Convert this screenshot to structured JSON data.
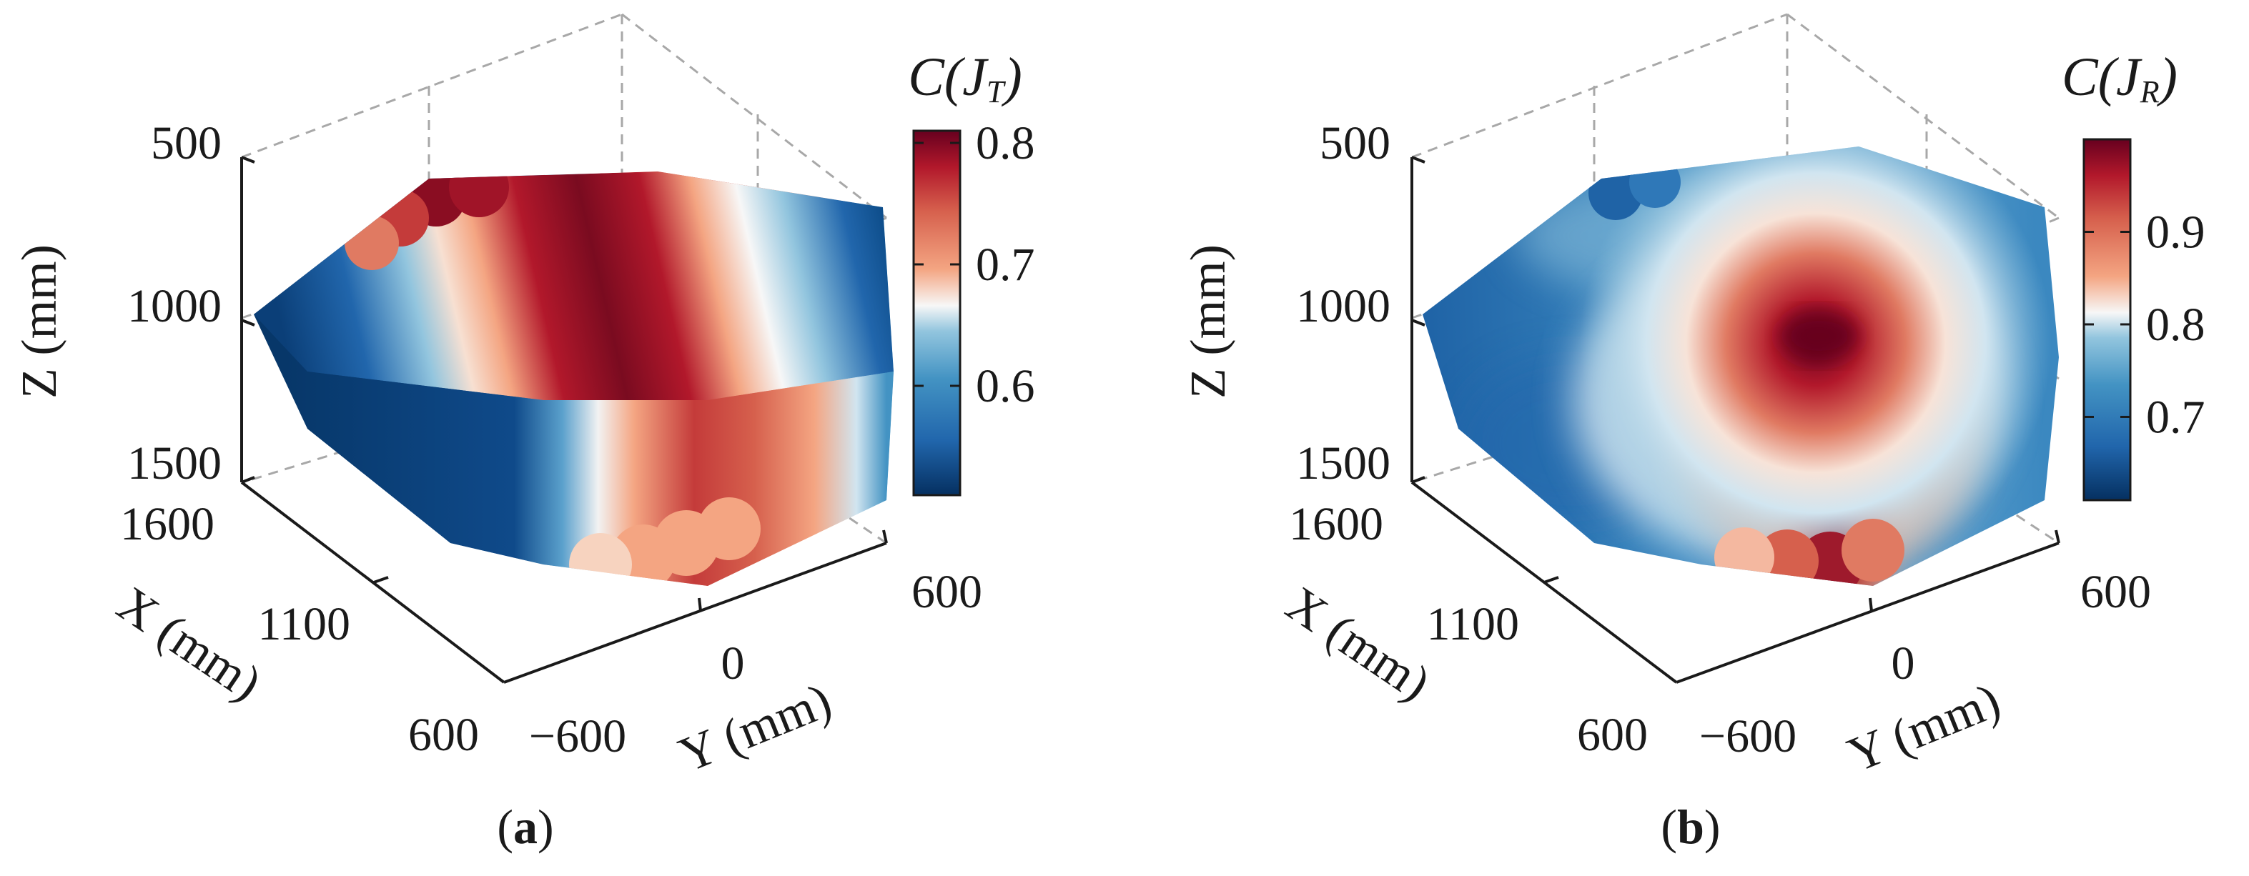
{
  "chart_data": [
    {
      "type": "scatter",
      "panel_label": "a",
      "projection": "3d",
      "title": "",
      "xlabel": "X (mm)",
      "ylabel": "Y (mm)",
      "zlabel": "Z (mm)",
      "x_ticks": [
        "600",
        "1100",
        "1600"
      ],
      "y_ticks": [
        "−600",
        "0",
        "600"
      ],
      "z_ticks": [
        "500",
        "1000",
        "1500"
      ],
      "xlim": [
        600,
        1600
      ],
      "ylim": [
        -600,
        600
      ],
      "zlim": [
        500,
        1500
      ],
      "z_reversed": true,
      "colorbar": {
        "label_main": "C(J",
        "label_sub": "T",
        "label_close": ")",
        "ticks": [
          0.6,
          0.7,
          0.8
        ],
        "tick_labels": [
          "0.6",
          "0.7",
          "0.8"
        ],
        "range": [
          0.51,
          0.81
        ],
        "colormap": "blue-white-red"
      },
      "value_range": [
        0.51,
        0.81
      ],
      "pattern": "bands along Y: low (~0.52) at Y=-600, high (~0.80) near Y=-150, low again at Y=+600"
    },
    {
      "type": "scatter",
      "panel_label": "b",
      "projection": "3d",
      "title": "",
      "xlabel": "X (mm)",
      "ylabel": "Y (mm)",
      "zlabel": "Z (mm)",
      "x_ticks": [
        "600",
        "1100",
        "1600"
      ],
      "y_ticks": [
        "−600",
        "0",
        "600"
      ],
      "z_ticks": [
        "500",
        "1000",
        "1500"
      ],
      "xlim": [
        600,
        1600
      ],
      "ylim": [
        -600,
        600
      ],
      "zlim": [
        500,
        1500
      ],
      "z_reversed": true,
      "colorbar": {
        "label_main": "C(J",
        "label_sub": "R",
        "label_close": ")",
        "ticks": [
          0.7,
          0.8,
          0.9
        ],
        "tick_labels": [
          "0.7",
          "0.8",
          "0.9"
        ],
        "range": [
          0.61,
          1.0
        ],
        "colormap": "blue-white-red"
      },
      "value_range": [
        0.62,
        0.99
      ],
      "pattern": "hot spot (~0.99) near X=600..1100, Y=-100, Z=1000; decreasing outward to ~0.65"
    }
  ],
  "colors": {
    "low": "#053061",
    "mid_low": "#2166ac",
    "light_blue": "#92c5de",
    "white": "#f7f7f7",
    "salmon": "#f4a582",
    "mid_high": "#d6604d",
    "high": "#67001f"
  }
}
